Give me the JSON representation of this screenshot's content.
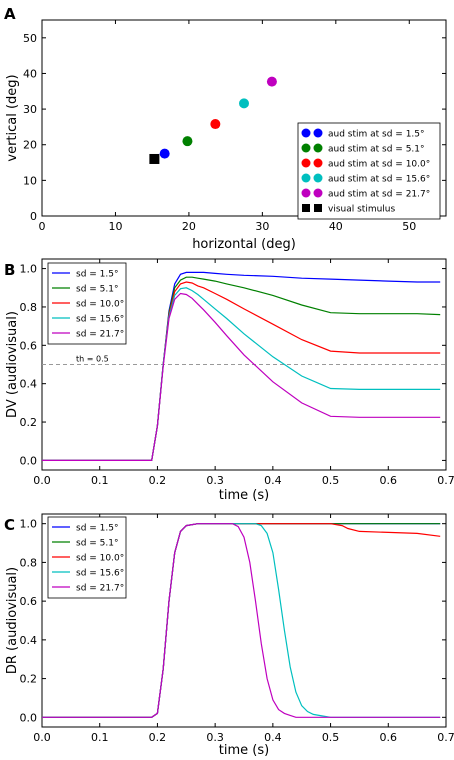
{
  "figure": {
    "panel_labels": [
      "A",
      "B",
      "C"
    ]
  },
  "chart_data": [
    {
      "panel": "A",
      "type": "scatter",
      "xlabel": "horizontal (deg)",
      "ylabel": "vertical (deg)",
      "xlim": [
        0,
        55
      ],
      "ylim": [
        0,
        55
      ],
      "xticks": [
        0,
        10,
        20,
        30,
        40,
        50
      ],
      "yticks": [
        0,
        10,
        20,
        30,
        40,
        50
      ],
      "grid": false,
      "legend_position": "lower-right",
      "series": [
        {
          "name": "aud stim at sd = 1.5°",
          "color": "#0000ff",
          "marker": "circle",
          "x": [
            16.7
          ],
          "y": [
            17.5
          ]
        },
        {
          "name": "aud stim at sd = 5.1°",
          "color": "#008000",
          "marker": "circle",
          "x": [
            19.8
          ],
          "y": [
            21.0
          ]
        },
        {
          "name": "aud stim at sd = 10.0°",
          "color": "#ff0000",
          "marker": "circle",
          "x": [
            23.6
          ],
          "y": [
            25.8
          ]
        },
        {
          "name": "aud stim at sd = 15.6°",
          "color": "#00bfbf",
          "marker": "circle",
          "x": [
            27.5
          ],
          "y": [
            31.6
          ]
        },
        {
          "name": "aud stim at sd = 21.7°",
          "color": "#bf00bf",
          "marker": "circle",
          "x": [
            31.3
          ],
          "y": [
            37.7
          ]
        },
        {
          "name": "visual stimulus",
          "color": "#000000",
          "marker": "square",
          "x": [
            15.3
          ],
          "y": [
            16.0
          ]
        }
      ]
    },
    {
      "panel": "B",
      "type": "line",
      "xlabel": "time (s)",
      "ylabel": "DV (audiovisual)",
      "xlim": [
        0,
        0.7
      ],
      "ylim": [
        -0.05,
        1.05
      ],
      "xticks": [
        0.0,
        0.1,
        0.2,
        0.3,
        0.4,
        0.5,
        0.6,
        0.7
      ],
      "yticks": [
        0.0,
        0.2,
        0.4,
        0.6,
        0.8,
        1.0
      ],
      "grid": false,
      "legend_position": "upper-left",
      "threshold": {
        "value": 0.5,
        "label": "th = 0.5",
        "color": "#999999"
      },
      "x": [
        0.0,
        0.19,
        0.2,
        0.21,
        0.22,
        0.23,
        0.24,
        0.25,
        0.26,
        0.27,
        0.28,
        0.3,
        0.32,
        0.35,
        0.4,
        0.45,
        0.5,
        0.55,
        0.6,
        0.65,
        0.69
      ],
      "series": [
        {
          "name": "sd = 1.5°",
          "color": "#0000ff",
          "values": [
            0,
            0,
            0.18,
            0.5,
            0.78,
            0.92,
            0.97,
            0.98,
            0.98,
            0.98,
            0.98,
            0.975,
            0.97,
            0.965,
            0.96,
            0.95,
            0.945,
            0.94,
            0.935,
            0.93,
            0.93
          ]
        },
        {
          "name": "sd = 5.1°",
          "color": "#008000",
          "values": [
            0,
            0,
            0.18,
            0.5,
            0.77,
            0.9,
            0.94,
            0.955,
            0.955,
            0.95,
            0.945,
            0.935,
            0.92,
            0.9,
            0.86,
            0.81,
            0.77,
            0.765,
            0.765,
            0.765,
            0.76
          ]
        },
        {
          "name": "sd = 10.0°",
          "color": "#ff0000",
          "values": [
            0,
            0,
            0.18,
            0.5,
            0.76,
            0.88,
            0.92,
            0.93,
            0.925,
            0.91,
            0.9,
            0.87,
            0.84,
            0.79,
            0.71,
            0.63,
            0.57,
            0.56,
            0.56,
            0.56,
            0.56
          ]
        },
        {
          "name": "sd = 15.6°",
          "color": "#00bfbf",
          "values": [
            0,
            0,
            0.18,
            0.5,
            0.75,
            0.86,
            0.895,
            0.9,
            0.885,
            0.865,
            0.84,
            0.79,
            0.74,
            0.66,
            0.54,
            0.44,
            0.375,
            0.37,
            0.37,
            0.37,
            0.37
          ]
        },
        {
          "name": "sd = 21.7°",
          "color": "#bf00bf",
          "values": [
            0,
            0,
            0.18,
            0.49,
            0.74,
            0.84,
            0.87,
            0.865,
            0.845,
            0.815,
            0.785,
            0.72,
            0.65,
            0.55,
            0.41,
            0.3,
            0.23,
            0.225,
            0.225,
            0.225,
            0.225
          ]
        }
      ]
    },
    {
      "panel": "C",
      "type": "line",
      "xlabel": "time (s)",
      "ylabel": "DR (audiovisual)",
      "xlim": [
        0,
        0.7
      ],
      "ylim": [
        -0.05,
        1.05
      ],
      "xticks": [
        0.0,
        0.1,
        0.2,
        0.3,
        0.4,
        0.5,
        0.6,
        0.7
      ],
      "yticks": [
        0.0,
        0.2,
        0.4,
        0.6,
        0.8,
        1.0
      ],
      "grid": false,
      "legend_position": "upper-left",
      "x": [
        0.0,
        0.19,
        0.2,
        0.21,
        0.22,
        0.23,
        0.24,
        0.25,
        0.27,
        0.3,
        0.33,
        0.34,
        0.35,
        0.36,
        0.37,
        0.38,
        0.39,
        0.4,
        0.41,
        0.42,
        0.43,
        0.44,
        0.45,
        0.46,
        0.47,
        0.48,
        0.49,
        0.5,
        0.51,
        0.52,
        0.53,
        0.55,
        0.6,
        0.65,
        0.69
      ],
      "series": [
        {
          "name": "sd = 1.5°",
          "color": "#0000ff",
          "values": [
            0,
            0,
            0.02,
            0.25,
            0.6,
            0.85,
            0.96,
            0.99,
            1,
            1,
            1,
            1,
            1,
            1,
            1,
            1,
            1,
            1,
            1,
            1,
            1,
            1,
            1,
            1,
            1,
            1,
            1,
            1,
            1,
            1,
            1,
            1,
            1,
            1,
            1
          ]
        },
        {
          "name": "sd = 5.1°",
          "color": "#008000",
          "values": [
            0,
            0,
            0.02,
            0.25,
            0.6,
            0.85,
            0.96,
            0.99,
            1,
            1,
            1,
            1,
            1,
            1,
            1,
            1,
            1,
            1,
            1,
            1,
            1,
            1,
            1,
            1,
            1,
            1,
            1,
            1,
            1,
            1,
            1,
            1,
            1,
            1,
            1
          ]
        },
        {
          "name": "sd = 10.0°",
          "color": "#ff0000",
          "values": [
            0,
            0,
            0.02,
            0.25,
            0.6,
            0.85,
            0.96,
            0.99,
            1,
            1,
            1,
            1,
            1,
            1,
            1,
            1,
            1,
            1,
            1,
            1,
            1,
            1,
            1,
            1,
            1,
            1,
            1,
            1,
            0.995,
            0.99,
            0.975,
            0.96,
            0.955,
            0.95,
            0.935
          ]
        },
        {
          "name": "sd = 15.6°",
          "color": "#00bfbf",
          "values": [
            0,
            0,
            0.02,
            0.25,
            0.6,
            0.85,
            0.96,
            0.99,
            1,
            1,
            1,
            1,
            1,
            1,
            1,
            0.99,
            0.95,
            0.85,
            0.66,
            0.45,
            0.26,
            0.13,
            0.06,
            0.03,
            0.015,
            0.01,
            0.005,
            0,
            0,
            0,
            0,
            0,
            0,
            0,
            0
          ]
        },
        {
          "name": "sd = 21.7°",
          "color": "#bf00bf",
          "values": [
            0,
            0,
            0.02,
            0.25,
            0.6,
            0.85,
            0.96,
            0.99,
            1,
            1,
            1,
            0.985,
            0.93,
            0.8,
            0.6,
            0.38,
            0.2,
            0.09,
            0.04,
            0.02,
            0.01,
            0,
            0,
            0,
            0,
            0,
            0,
            0,
            0,
            0,
            0,
            0,
            0,
            0,
            0
          ]
        }
      ]
    }
  ]
}
